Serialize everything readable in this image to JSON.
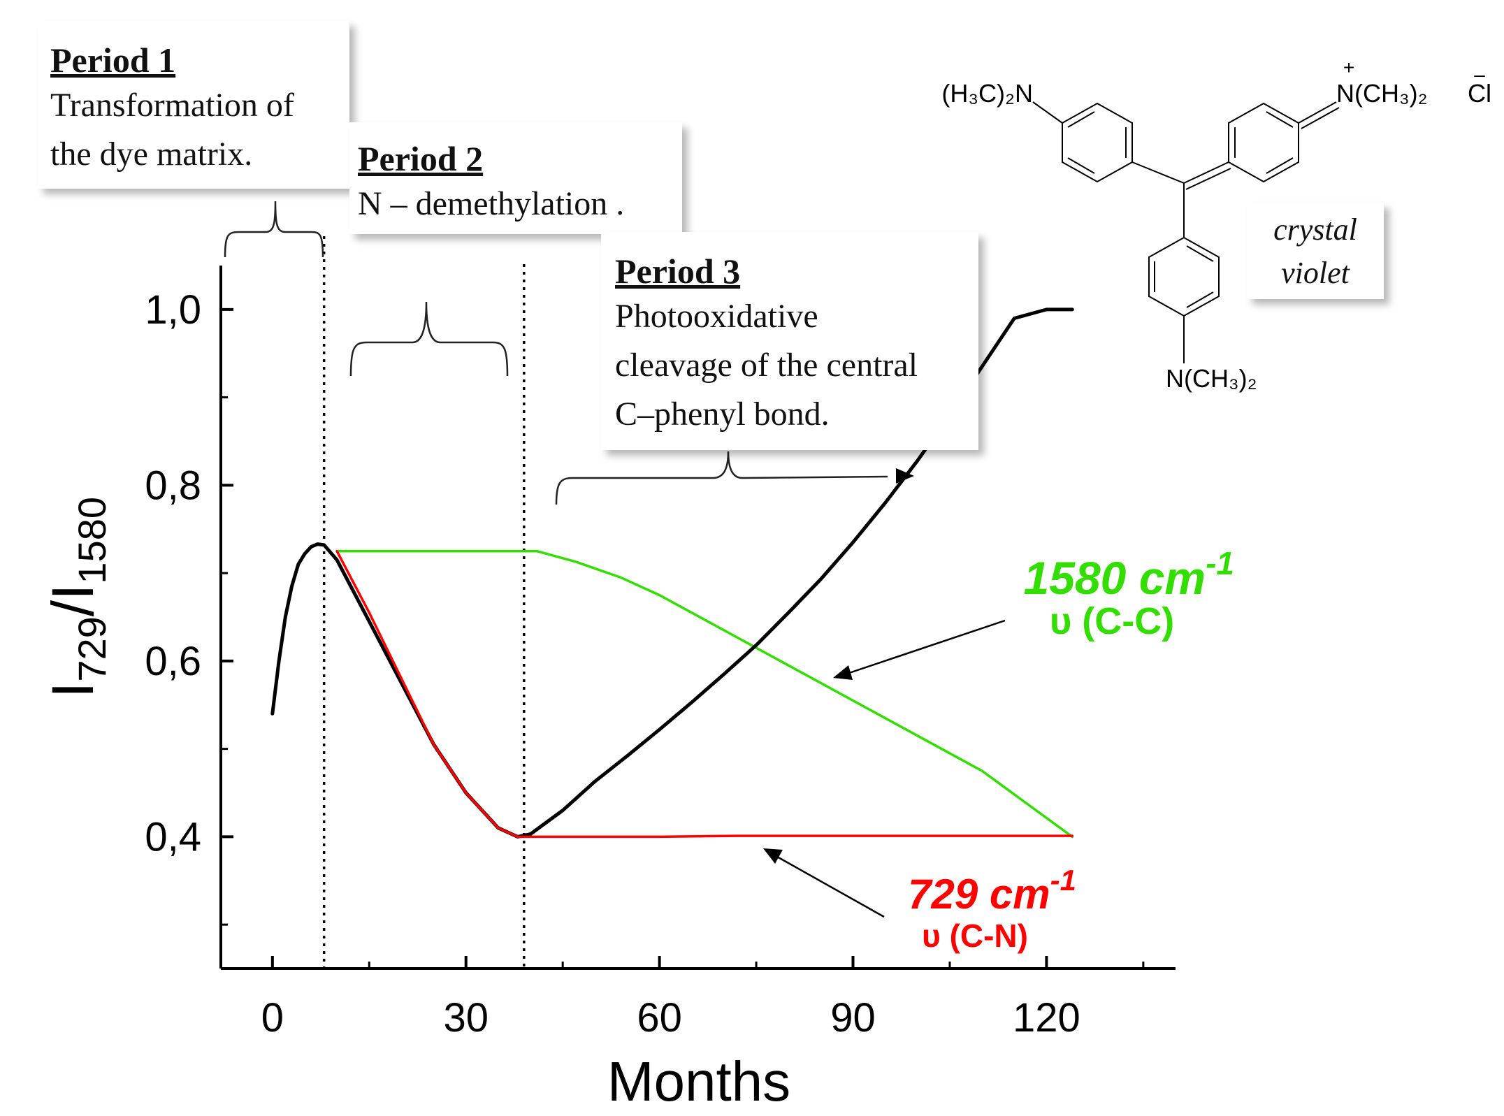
{
  "chart_data": {
    "type": "line",
    "xlabel": "Months",
    "ylabel_main": "I",
    "ylabel_sub1": "729",
    "ylabel_sep": "/I",
    "ylabel_sub2": "1580",
    "xlim": [
      -8,
      140
    ],
    "ylim": [
      0.25,
      1.05
    ],
    "xticks": [
      0,
      30,
      60,
      90,
      120
    ],
    "xtick_labels": [
      "0",
      "30",
      "60",
      "90",
      "120"
    ],
    "yticks": [
      0.4,
      0.6,
      0.8,
      1.0
    ],
    "ytick_labels": [
      "0,4",
      "0,6",
      "0,8",
      "1,0"
    ],
    "period_boundaries": [
      8,
      39
    ],
    "series": [
      {
        "name": "I729/I1580",
        "color": "#000000",
        "x": [
          0,
          1,
          2,
          3,
          4,
          5,
          6,
          7,
          8,
          10,
          15,
          20,
          25,
          30,
          35,
          38,
          40,
          45,
          50,
          55,
          60,
          65,
          70,
          75,
          80,
          85,
          90,
          95,
          100,
          105,
          110,
          115,
          120,
          124
        ],
        "y": [
          0.54,
          0.6,
          0.65,
          0.685,
          0.71,
          0.722,
          0.73,
          0.733,
          0.732,
          0.715,
          0.645,
          0.575,
          0.505,
          0.45,
          0.41,
          0.4,
          0.403,
          0.43,
          0.463,
          0.492,
          0.522,
          0.553,
          0.585,
          0.618,
          0.655,
          0.693,
          0.735,
          0.78,
          0.828,
          0.88,
          0.935,
          0.99,
          1.0,
          1.0
        ]
      },
      {
        "name": "729 cm-1",
        "color": "#ff0000",
        "x": [
          10,
          15,
          20,
          25,
          30,
          35,
          38,
          40,
          60,
          72,
          90,
          124
        ],
        "y": [
          0.725,
          0.655,
          0.58,
          0.505,
          0.45,
          0.41,
          0.4,
          0.4,
          0.4,
          0.401,
          0.401,
          0.401
        ]
      },
      {
        "name": "1580 cm-1",
        "color": "#33dd00",
        "x": [
          10,
          20,
          30,
          41,
          47,
          54,
          60,
          70,
          80,
          90,
          100,
          110,
          124
        ],
        "y": [
          0.725,
          0.725,
          0.725,
          0.725,
          0.713,
          0.695,
          0.675,
          0.635,
          0.595,
          0.555,
          0.515,
          0.475,
          0.4
        ]
      }
    ],
    "annotations": {
      "period1_title": "Period 1",
      "period1_line1": "Transformation of",
      "period1_line2": "the dye matrix.",
      "period2_title": "Period 2",
      "period2_line1": "N – demethylation .",
      "period3_title": "Period 3",
      "period3_line1": "Photooxidative",
      "period3_line2": "cleavage of the central",
      "period3_line3": "C–phenyl bond.",
      "label_1580_main": "1580 cm",
      "label_1580_sup": "-1",
      "label_1580_mode": "υ (C-C)",
      "label_729_main": "729 cm",
      "label_729_sup": "-1",
      "label_729_mode": "υ (C-N)",
      "crystal_violet_line1": "crystal",
      "crystal_violet_line2": "violet"
    },
    "structure_labels": {
      "left_group": "(H₃C)₂N",
      "right_group": "N(CH₃)₂",
      "right_charge": "+",
      "counter_ion": "Cl",
      "counter_charge": "–",
      "bottom_group": "N(CH₃)₂"
    },
    "colors": {
      "black_series": "#000000",
      "red_series": "#ff0000",
      "green_series": "#33dd00"
    }
  }
}
